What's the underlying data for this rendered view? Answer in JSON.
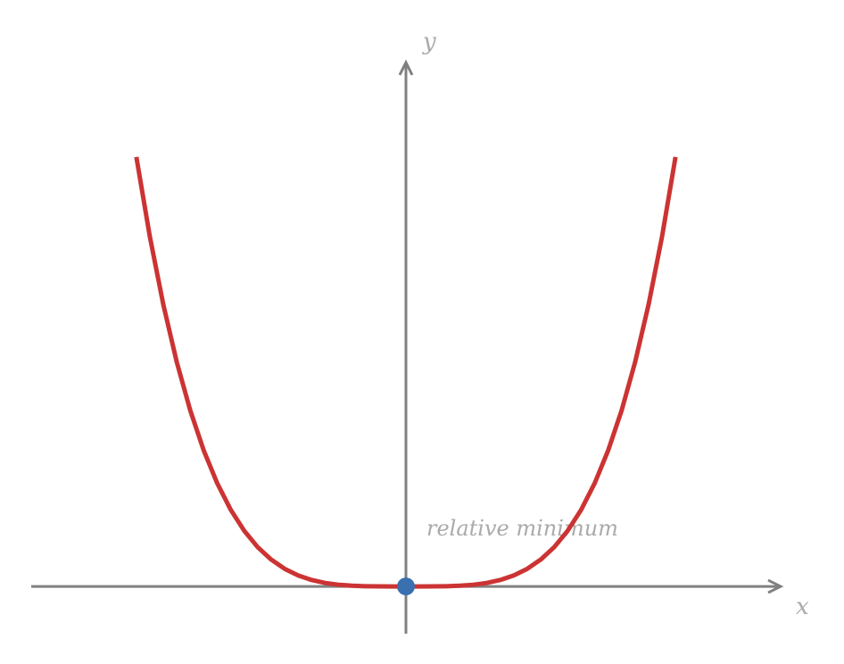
{
  "chart_data": {
    "type": "line",
    "xlabel": "x",
    "ylabel": "y",
    "annotation": "relative minimum",
    "xlim": [
      -1.39,
      1.39
    ],
    "ylim": [
      -0.11,
      1.22
    ],
    "axis_color": "#808080",
    "x": [
      -1,
      -0.95,
      -0.9,
      -0.85,
      -0.8,
      -0.75,
      -0.7,
      -0.65,
      -0.6,
      -0.55,
      -0.5,
      -0.45,
      -0.4,
      -0.35,
      -0.3,
      -0.25,
      -0.2,
      -0.15,
      -0.1,
      -0.05,
      0,
      0.05,
      0.1,
      0.15,
      0.2,
      0.25,
      0.3,
      0.35,
      0.4,
      0.45,
      0.5,
      0.55,
      0.6,
      0.65,
      0.7,
      0.75,
      0.8,
      0.85,
      0.9,
      0.95,
      1
    ],
    "series": [
      {
        "color": "#cc3333",
        "values": [
          1,
          0.81450625,
          0.6561,
          0.52200625,
          0.4096,
          0.31640625,
          0.2401,
          0.17850625,
          0.1296,
          0.09150625,
          0.0625,
          0.04100625,
          0.0256,
          0.01500625,
          0.0081,
          0.00390625,
          0.0016,
          0.00050625,
          0.0001,
          6.25e-06,
          0,
          6.25e-06,
          0.0001,
          0.00050625,
          0.0016,
          0.00390625,
          0.0081,
          0.01500625,
          0.0256,
          0.04100625,
          0.0625,
          0.09150625,
          0.1296,
          0.17850625,
          0.2401,
          0.31640625,
          0.4096,
          0.52200625,
          0.6561,
          0.81450625,
          1
        ]
      }
    ],
    "point": {
      "x": 0,
      "y": 0,
      "color": "#3a70b0"
    }
  }
}
